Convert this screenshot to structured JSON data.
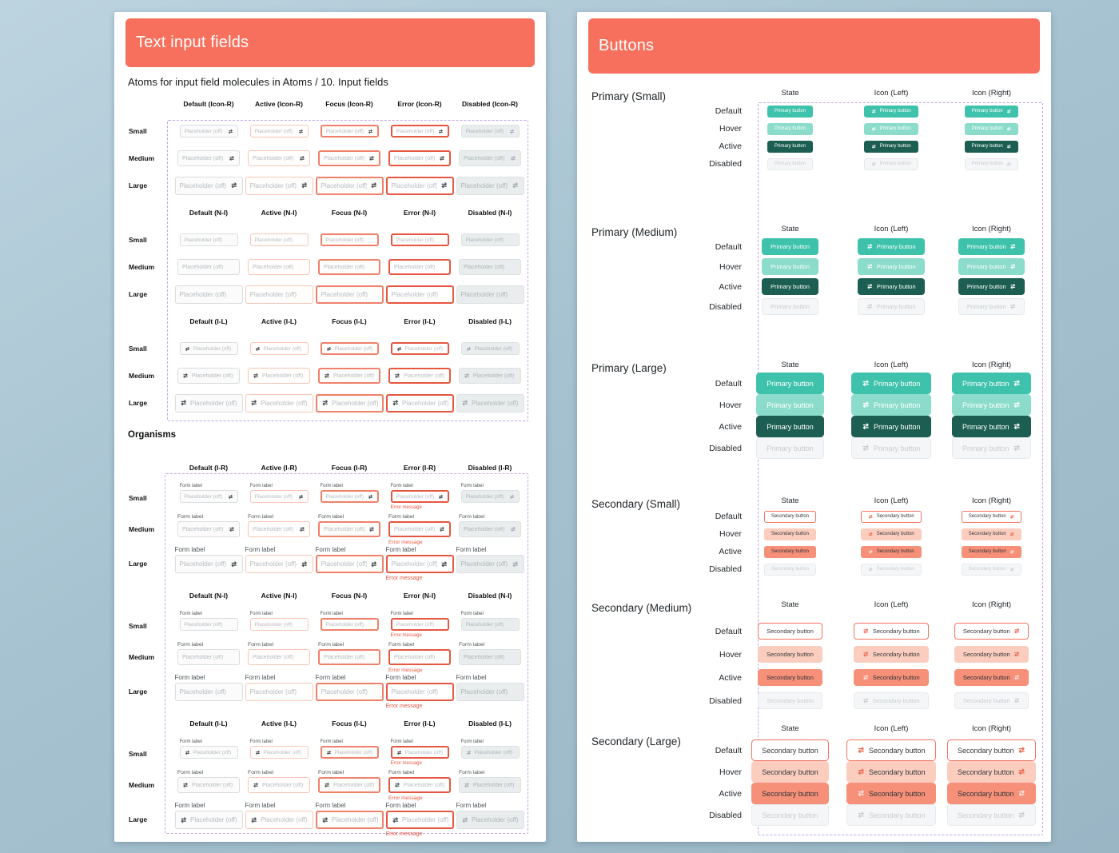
{
  "colors": {
    "header_band": "#f7705d",
    "primary_default": "#3fc2ab",
    "primary_hover": "#8bdccb",
    "primary_active": "#1c5f52",
    "secondary_accent": "#f4735f",
    "secondary_hover_bg": "#fbcdbf",
    "secondary_active_bg": "#f69078",
    "error": "#e55740",
    "dashed_frame": "#bfa3e8"
  },
  "left_panel": {
    "title": "Text input fields",
    "subtitle": "Atoms for input field molecules in Atoms / 10. Input fields",
    "organisms_heading": "Organisms",
    "sizes": [
      "Small",
      "Medium",
      "Large"
    ],
    "states": [
      "Default",
      "Active",
      "Focus",
      "Error",
      "Disabled"
    ],
    "placeholder": "Placeholder (off)",
    "form_label": "Form label",
    "error_message": "Error message",
    "atom_groups": [
      {
        "tag": "Icon-R",
        "icon": "right"
      },
      {
        "tag": "N-I",
        "icon": "none"
      },
      {
        "tag": "I-L",
        "icon": "left"
      }
    ],
    "organism_groups": [
      {
        "tag": "I-R",
        "icon": "right"
      },
      {
        "tag": "N-I",
        "icon": "none"
      },
      {
        "tag": "I-L",
        "icon": "left"
      }
    ]
  },
  "right_panel": {
    "title": "Buttons",
    "column_headers": [
      "State",
      "Icon (Left)",
      "Icon (Right)"
    ],
    "state_rows": [
      "Default",
      "Hover",
      "Active",
      "Disabled"
    ],
    "sections": [
      {
        "title": "Primary (Small)",
        "variant": "primary",
        "size": "sm",
        "button_label": "Primary button"
      },
      {
        "title": "Primary (Medium)",
        "variant": "primary",
        "size": "md",
        "button_label": "Primary button"
      },
      {
        "title": "Primary (Large)",
        "variant": "primary",
        "size": "lg",
        "button_label": "Primary button"
      },
      {
        "title": "Secondary (Small)",
        "variant": "secondary",
        "size": "sm",
        "button_label": "Secondary button"
      },
      {
        "title": "Secondary (Medium)",
        "variant": "secondary",
        "size": "md",
        "button_label": "Secondary button"
      },
      {
        "title": "Secondary (Large)",
        "variant": "secondary",
        "size": "lg",
        "button_label": "Secondary button"
      }
    ]
  }
}
